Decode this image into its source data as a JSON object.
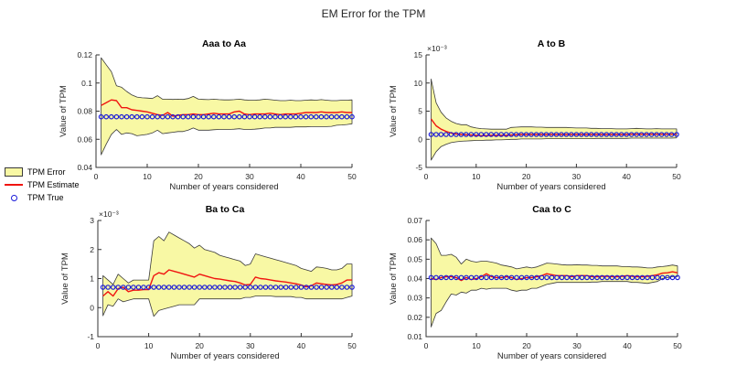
{
  "figure": {
    "title": "EM Error for the TPM",
    "background": "#ffffff"
  },
  "legend": {
    "items": [
      {
        "label": "TPM Error",
        "swatch": "band"
      },
      {
        "label": "TPM Estimate",
        "swatch": "line"
      },
      {
        "label": "TPM True",
        "swatch": "marker"
      }
    ]
  },
  "colors": {
    "band_fill": "#f8f8a4",
    "band_edge": "#3a3a3a",
    "estimate_line": "#f01410",
    "true_marker": "#1a1ad9",
    "axis": "#333333",
    "text": "#262626"
  },
  "chart_data": [
    {
      "type": "area",
      "title": "Aaa to Aa",
      "xlabel": "Number of years considered",
      "ylabel": "Value of TPM",
      "y_exponent_label": "",
      "xlim": [
        0,
        50
      ],
      "ylim": [
        0.04,
        0.12
      ],
      "grid": false,
      "xticks": {
        "values": [
          0,
          10,
          20,
          30,
          40,
          50
        ],
        "labels": [
          "0",
          "10",
          "20",
          "30",
          "40",
          "50"
        ]
      },
      "yticks": {
        "values": [
          0.04,
          0.06,
          0.08,
          0.1,
          0.12
        ],
        "labels": [
          "0.04",
          "0.06",
          "0.08",
          "0.1",
          "0.12"
        ]
      },
      "x": [
        1,
        2,
        3,
        4,
        5,
        6,
        7,
        8,
        9,
        10,
        11,
        12,
        13,
        14,
        15,
        16,
        17,
        18,
        19,
        20,
        21,
        22,
        23,
        24,
        25,
        26,
        27,
        28,
        29,
        30,
        31,
        32,
        33,
        34,
        35,
        36,
        37,
        38,
        39,
        40,
        41,
        42,
        43,
        44,
        45,
        46,
        47,
        48,
        49,
        50
      ],
      "series": [
        {
          "name": "TPM Error",
          "type": "band",
          "upper": [
            0.118,
            0.113,
            0.108,
            0.098,
            0.097,
            0.094,
            0.0915,
            0.09,
            0.0895,
            0.0893,
            0.089,
            0.091,
            0.0885,
            0.0885,
            0.0883,
            0.0885,
            0.0883,
            0.089,
            0.0905,
            0.0885,
            0.0883,
            0.0882,
            0.0885,
            0.0882,
            0.088,
            0.088,
            0.0882,
            0.0885,
            0.088,
            0.0878,
            0.0878,
            0.088,
            0.0885,
            0.0882,
            0.0878,
            0.0875,
            0.0875,
            0.0878,
            0.0875,
            0.0875,
            0.0878,
            0.088,
            0.0878,
            0.0882,
            0.0878,
            0.0875,
            0.0875,
            0.0878,
            0.0878,
            0.088
          ],
          "lower": [
            0.049,
            0.0565,
            0.0635,
            0.067,
            0.0635,
            0.0645,
            0.064,
            0.0625,
            0.063,
            0.0635,
            0.0645,
            0.0665,
            0.064,
            0.0645,
            0.065,
            0.0655,
            0.0655,
            0.0665,
            0.068,
            0.0665,
            0.0665,
            0.0665,
            0.0668,
            0.067,
            0.067,
            0.067,
            0.0672,
            0.0675,
            0.067,
            0.067,
            0.0672,
            0.0675,
            0.068,
            0.068,
            0.0685,
            0.0685,
            0.0685,
            0.0685,
            0.0688,
            0.0688,
            0.0688,
            0.069,
            0.069,
            0.069,
            0.069,
            0.0692,
            0.07,
            0.0702,
            0.0705,
            0.071
          ]
        },
        {
          "name": "TPM Estimate",
          "type": "line",
          "values": [
            0.084,
            0.086,
            0.088,
            0.0875,
            0.0825,
            0.0825,
            0.081,
            0.0805,
            0.08,
            0.0795,
            0.0785,
            0.0775,
            0.077,
            0.079,
            0.0765,
            0.077,
            0.0775,
            0.0775,
            0.078,
            0.0775,
            0.0775,
            0.078,
            0.0785,
            0.078,
            0.078,
            0.078,
            0.0795,
            0.08,
            0.078,
            0.0775,
            0.078,
            0.078,
            0.078,
            0.0785,
            0.078,
            0.0775,
            0.078,
            0.078,
            0.078,
            0.0785,
            0.079,
            0.079,
            0.079,
            0.0795,
            0.079,
            0.079,
            0.079,
            0.0795,
            0.079,
            0.079
          ]
        },
        {
          "name": "TPM True",
          "type": "scatter",
          "marker": "circle-open",
          "constant": true,
          "value": 0.076
        }
      ]
    },
    {
      "type": "area",
      "title": "A to B",
      "xlabel": "Number of years considered",
      "ylabel": "Value of TPM",
      "y_exponent_label": "×10⁻³",
      "xlim": [
        0,
        50
      ],
      "ylim": [
        -5,
        15
      ],
      "grid": false,
      "xticks": {
        "values": [
          0,
          10,
          20,
          30,
          40,
          50
        ],
        "labels": [
          "0",
          "10",
          "20",
          "30",
          "40",
          "50"
        ]
      },
      "yticks": {
        "values": [
          -5,
          0,
          5,
          10,
          15
        ],
        "labels": [
          "-5",
          "0",
          "5",
          "10",
          "15"
        ]
      },
      "x": [
        1,
        2,
        3,
        4,
        5,
        6,
        7,
        8,
        9,
        10,
        11,
        12,
        13,
        14,
        15,
        16,
        17,
        18,
        19,
        20,
        21,
        22,
        23,
        24,
        25,
        26,
        27,
        28,
        29,
        30,
        31,
        32,
        33,
        34,
        35,
        36,
        37,
        38,
        39,
        40,
        41,
        42,
        43,
        44,
        45,
        46,
        47,
        48,
        49,
        50
      ],
      "series": [
        {
          "name": "TPM Error",
          "type": "band",
          "upper": [
            10.7,
            6.5,
            4.8,
            3.8,
            3.2,
            2.8,
            2.6,
            2.6,
            2.2,
            2.0,
            1.9,
            1.85,
            1.8,
            1.8,
            1.8,
            1.8,
            2.1,
            2.15,
            2.2,
            2.2,
            2.2,
            2.15,
            2.15,
            2.1,
            2.1,
            2.1,
            2.1,
            2.1,
            2.05,
            2.0,
            2.0,
            2.0,
            1.95,
            1.95,
            1.9,
            1.9,
            1.9,
            1.85,
            1.85,
            1.85,
            1.9,
            1.95,
            1.9,
            1.85,
            1.85,
            1.9,
            1.85,
            1.85,
            1.85,
            1.85
          ],
          "lower": [
            -3.7,
            -2.2,
            -1.3,
            -0.9,
            -0.6,
            -0.45,
            -0.35,
            -0.3,
            -0.25,
            -0.2,
            -0.2,
            -0.15,
            -0.15,
            -0.1,
            -0.1,
            -0.05,
            0.0,
            0.0,
            0.05,
            0.05,
            0.05,
            0.05,
            0.05,
            0.1,
            0.1,
            0.1,
            0.1,
            0.1,
            0.1,
            0.1,
            0.1,
            0.1,
            0.1,
            0.15,
            0.15,
            0.15,
            0.15,
            0.15,
            0.15,
            0.15,
            0.2,
            0.2,
            0.2,
            0.2,
            0.2,
            0.2,
            0.2,
            0.2,
            0.2,
            0.25
          ]
        },
        {
          "name": "TPM Estimate",
          "type": "line",
          "values": [
            3.6,
            2.4,
            1.8,
            1.4,
            1.1,
            0.95,
            0.85,
            0.8,
            0.75,
            0.7,
            0.65,
            0.65,
            0.7,
            0.7,
            0.7,
            0.7,
            0.75,
            0.8,
            0.85,
            0.85,
            0.85,
            0.85,
            0.85,
            0.85,
            0.85,
            0.85,
            0.85,
            0.85,
            0.85,
            0.85,
            0.85,
            0.85,
            0.85,
            0.85,
            0.85,
            0.85,
            0.85,
            0.85,
            0.85,
            0.85,
            0.9,
            0.9,
            0.9,
            0.9,
            0.9,
            0.9,
            0.9,
            0.9,
            0.9,
            0.9
          ]
        },
        {
          "name": "TPM True",
          "type": "scatter",
          "marker": "circle-open",
          "constant": true,
          "value": 0.85
        }
      ]
    },
    {
      "type": "area",
      "title": "Ba to Ca",
      "xlabel": "Number of years considered",
      "ylabel": "Value of TPM",
      "y_exponent_label": "×10⁻³",
      "xlim": [
        0,
        50
      ],
      "ylim": [
        -1,
        3
      ],
      "grid": false,
      "xticks": {
        "values": [
          0,
          10,
          20,
          30,
          40,
          50
        ],
        "labels": [
          "0",
          "10",
          "20",
          "30",
          "40",
          "50"
        ]
      },
      "yticks": {
        "values": [
          -1,
          0,
          1,
          2,
          3
        ],
        "labels": [
          "-1",
          "0",
          "1",
          "2",
          "3"
        ]
      },
      "x": [
        1,
        2,
        3,
        4,
        5,
        6,
        7,
        8,
        9,
        10,
        11,
        12,
        13,
        14,
        15,
        16,
        17,
        18,
        19,
        20,
        21,
        22,
        23,
        24,
        25,
        26,
        27,
        28,
        29,
        30,
        31,
        32,
        33,
        34,
        35,
        36,
        37,
        38,
        39,
        40,
        41,
        42,
        43,
        44,
        45,
        46,
        47,
        48,
        49,
        50
      ],
      "series": [
        {
          "name": "TPM Error",
          "type": "band",
          "upper": [
            1.1,
            0.95,
            0.8,
            1.15,
            1.0,
            0.85,
            0.95,
            0.95,
            0.95,
            0.95,
            2.3,
            2.45,
            2.3,
            2.6,
            2.5,
            2.4,
            2.3,
            2.2,
            2.05,
            2.15,
            2.0,
            1.95,
            1.9,
            1.8,
            1.75,
            1.7,
            1.65,
            1.6,
            1.45,
            1.5,
            1.85,
            1.8,
            1.75,
            1.7,
            1.65,
            1.6,
            1.55,
            1.5,
            1.45,
            1.35,
            1.3,
            1.25,
            1.4,
            1.38,
            1.35,
            1.3,
            1.3,
            1.35,
            1.5,
            1.5
          ],
          "lower": [
            -0.28,
            0.1,
            0.05,
            0.3,
            0.2,
            0.25,
            0.3,
            0.3,
            0.3,
            0.3,
            -0.3,
            -0.1,
            -0.05,
            0.0,
            0.05,
            0.1,
            0.1,
            0.1,
            0.1,
            0.3,
            0.3,
            0.3,
            0.3,
            0.3,
            0.3,
            0.3,
            0.3,
            0.3,
            0.35,
            0.35,
            0.4,
            0.4,
            0.4,
            0.4,
            0.38,
            0.38,
            0.38,
            0.38,
            0.35,
            0.35,
            0.3,
            0.3,
            0.3,
            0.3,
            0.3,
            0.3,
            0.3,
            0.3,
            0.35,
            0.4
          ]
        },
        {
          "name": "TPM Estimate",
          "type": "line",
          "values": [
            0.4,
            0.55,
            0.4,
            0.65,
            0.7,
            0.55,
            0.6,
            0.6,
            0.62,
            0.62,
            1.1,
            1.2,
            1.15,
            1.3,
            1.25,
            1.2,
            1.15,
            1.1,
            1.05,
            1.15,
            1.1,
            1.05,
            1.0,
            0.98,
            0.95,
            0.92,
            0.9,
            0.85,
            0.78,
            0.8,
            1.05,
            1.0,
            0.98,
            0.95,
            0.92,
            0.9,
            0.88,
            0.85,
            0.82,
            0.78,
            0.72,
            0.75,
            0.85,
            0.82,
            0.8,
            0.78,
            0.8,
            0.85,
            0.95,
            0.95
          ]
        },
        {
          "name": "TPM True",
          "type": "scatter",
          "marker": "circle-open",
          "constant": true,
          "value": 0.7
        }
      ]
    },
    {
      "type": "area",
      "title": "Caa to C",
      "xlabel": "Number of years considered",
      "ylabel": "Value of TPM",
      "y_exponent_label": "",
      "xlim": [
        0,
        50
      ],
      "ylim": [
        0.01,
        0.07
      ],
      "grid": false,
      "xticks": {
        "values": [
          0,
          10,
          20,
          30,
          40,
          50
        ],
        "labels": [
          "0",
          "10",
          "20",
          "30",
          "40",
          "50"
        ]
      },
      "yticks": {
        "values": [
          0.01,
          0.02,
          0.03,
          0.04,
          0.05,
          0.06,
          0.07
        ],
        "labels": [
          "0.01",
          "0.02",
          "0.03",
          "0.04",
          "0.05",
          "0.06",
          "0.07"
        ]
      },
      "x": [
        1,
        2,
        3,
        4,
        5,
        6,
        7,
        8,
        9,
        10,
        11,
        12,
        13,
        14,
        15,
        16,
        17,
        18,
        19,
        20,
        21,
        22,
        23,
        24,
        25,
        26,
        27,
        28,
        29,
        30,
        31,
        32,
        33,
        34,
        35,
        36,
        37,
        38,
        39,
        40,
        41,
        42,
        43,
        44,
        45,
        46,
        47,
        48,
        49,
        50
      ],
      "series": [
        {
          "name": "TPM Error",
          "type": "band",
          "upper": [
            0.061,
            0.058,
            0.052,
            0.052,
            0.0525,
            0.051,
            0.0475,
            0.05,
            0.049,
            0.0485,
            0.049,
            0.049,
            0.0485,
            0.048,
            0.047,
            0.0465,
            0.046,
            0.045,
            0.0455,
            0.046,
            0.0455,
            0.046,
            0.047,
            0.048,
            0.0478,
            0.0475,
            0.0472,
            0.047,
            0.047,
            0.0472,
            0.047,
            0.047,
            0.0468,
            0.0468,
            0.0465,
            0.0465,
            0.0465,
            0.0465,
            0.0462,
            0.0462,
            0.046,
            0.046,
            0.0458,
            0.0455,
            0.0455,
            0.046,
            0.0462,
            0.0465,
            0.047,
            0.0465
          ],
          "lower": [
            0.015,
            0.022,
            0.0235,
            0.028,
            0.032,
            0.0315,
            0.033,
            0.0325,
            0.034,
            0.034,
            0.035,
            0.0345,
            0.035,
            0.035,
            0.035,
            0.035,
            0.034,
            0.0335,
            0.034,
            0.034,
            0.035,
            0.035,
            0.036,
            0.037,
            0.0375,
            0.038,
            0.038,
            0.038,
            0.038,
            0.038,
            0.038,
            0.038,
            0.0382,
            0.0382,
            0.0385,
            0.0385,
            0.0385,
            0.0385,
            0.0385,
            0.0385,
            0.038,
            0.038,
            0.0378,
            0.0375,
            0.038,
            0.0385,
            0.04,
            0.0405,
            0.041,
            0.041
          ]
        },
        {
          "name": "TPM Estimate",
          "type": "line",
          "values": [
            0.04,
            0.0395,
            0.0405,
            0.041,
            0.041,
            0.0405,
            0.039,
            0.0405,
            0.0395,
            0.04,
            0.041,
            0.0425,
            0.041,
            0.0405,
            0.0405,
            0.041,
            0.0405,
            0.0395,
            0.04,
            0.0405,
            0.0405,
            0.041,
            0.0415,
            0.0425,
            0.042,
            0.0415,
            0.0415,
            0.0415,
            0.041,
            0.0415,
            0.0415,
            0.0415,
            0.041,
            0.041,
            0.0412,
            0.0412,
            0.041,
            0.041,
            0.0412,
            0.0415,
            0.0412,
            0.041,
            0.041,
            0.0412,
            0.0415,
            0.042,
            0.0428,
            0.043,
            0.0435,
            0.043
          ]
        },
        {
          "name": "TPM True",
          "type": "scatter",
          "marker": "circle-open",
          "constant": true,
          "value": 0.0405
        }
      ]
    }
  ]
}
